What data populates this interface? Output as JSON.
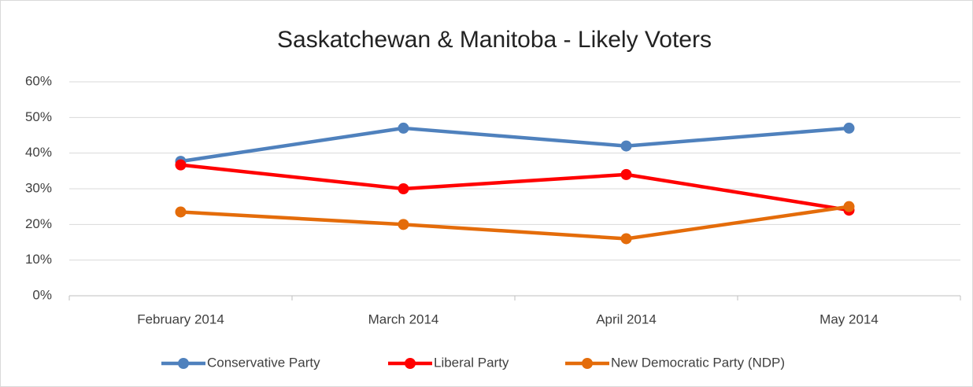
{
  "chart_data": {
    "type": "line",
    "title": "Saskatchewan & Manitoba - Likely Voters",
    "categories": [
      "February 2014",
      "March 2014",
      "April 2014",
      "May 2014"
    ],
    "series": [
      {
        "name": "Conservative Party",
        "color": "#4f81bd",
        "values": [
          37.7,
          47,
          42,
          47
        ]
      },
      {
        "name": "Liberal Party",
        "color": "#ff0000",
        "values": [
          36.7,
          30,
          34,
          24
        ]
      },
      {
        "name": "New Democratic Party (NDP)",
        "color": "#e46c0a",
        "values": [
          23.5,
          20,
          16,
          25
        ]
      }
    ],
    "ylim": [
      0,
      60
    ],
    "yticks": [
      {
        "value": 0,
        "label": "0%"
      },
      {
        "value": 10,
        "label": "10%"
      },
      {
        "value": 20,
        "label": "20%"
      },
      {
        "value": 30,
        "label": "30%"
      },
      {
        "value": 40,
        "label": "40%"
      },
      {
        "value": 50,
        "label": "50%"
      },
      {
        "value": 60,
        "label": "60%"
      }
    ],
    "grid": true,
    "legend": "bottom"
  }
}
